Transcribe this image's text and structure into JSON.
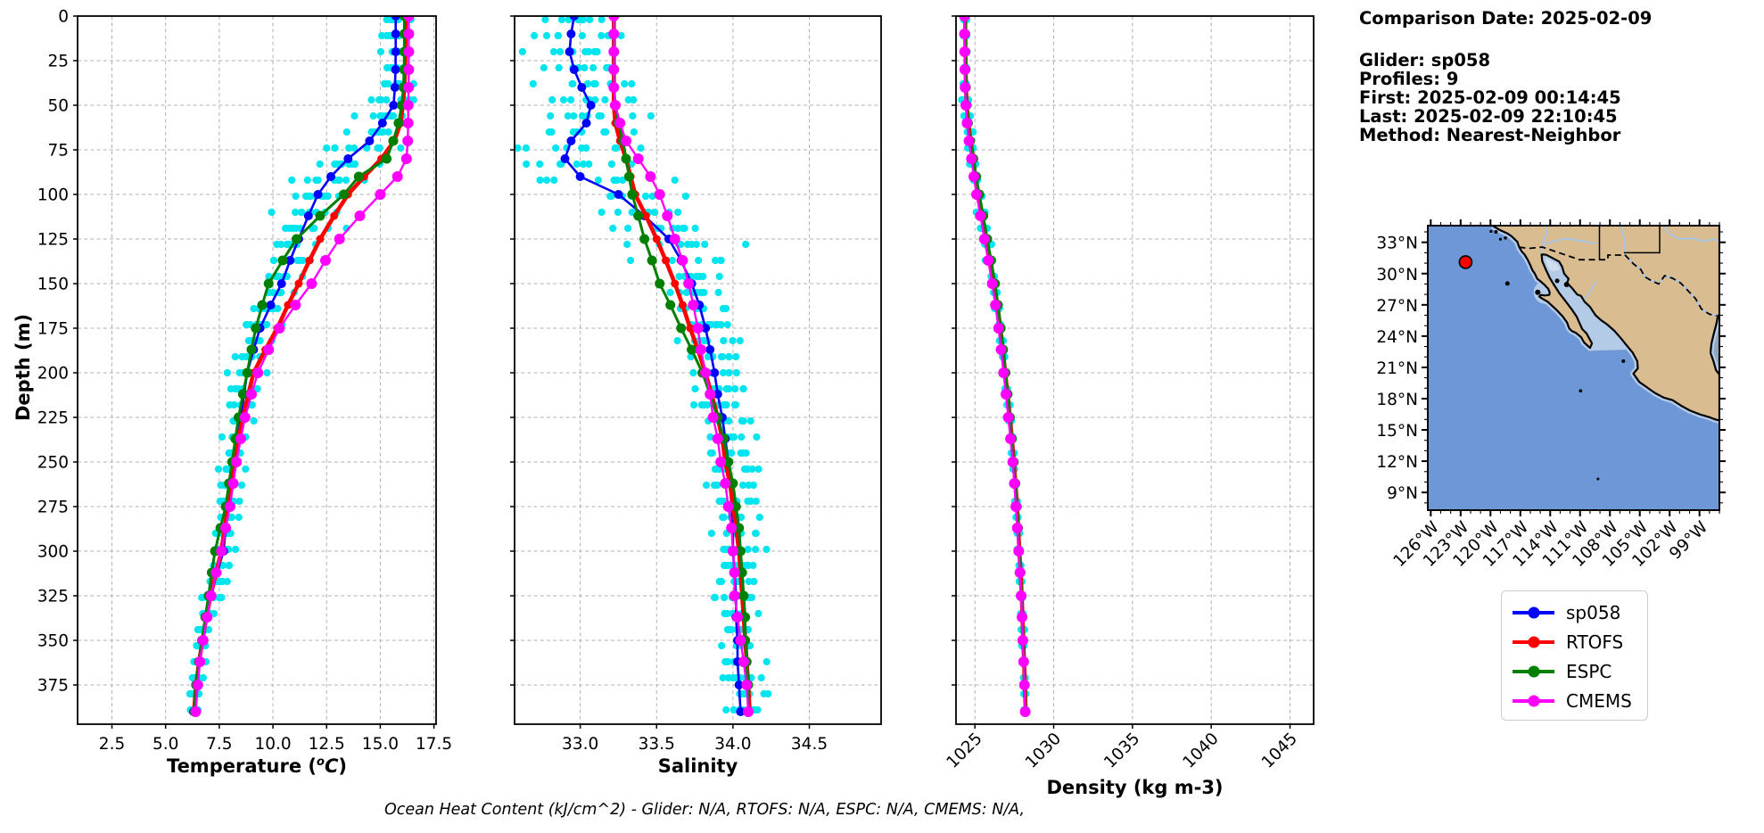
{
  "info_panel": {
    "comparison_date": "Comparison Date: 2025-02-09",
    "glider": "Glider: sp058",
    "profiles": "Profiles: 9",
    "first": "First: 2025-02-09 00:14:45",
    "last": "Last: 2025-02-09 22:10:45",
    "method": "Method: Nearest-Neighbor"
  },
  "footer": {
    "ohc_note": "Ocean Heat Content (kJ/cm^2) - Glider: N/A,  RTOFS: N/A,  ESPC: N/A,  CMEMS: N/A,"
  },
  "legend": {
    "items": [
      {
        "label": "sp058",
        "color": "#0000ff"
      },
      {
        "label": "RTOFS",
        "color": "#ff0000"
      },
      {
        "label": "ESPC",
        "color": "#008000"
      },
      {
        "label": "CMEMS",
        "color": "#ff00ff"
      }
    ]
  },
  "colors": {
    "glider_scatter": "#00e5ee",
    "grid": "#b2b2b2",
    "ocean": "#6d97d6",
    "land": "#d9bc8f",
    "shallow": "#b3cbe6",
    "shallow_light": "#cfdeee",
    "gulf_mexico": "#8fa6bd",
    "river": "#a3c6ee",
    "station_marker": "#ff0000"
  },
  "chart_data": [
    {
      "type": "line",
      "name": "temperature",
      "xlabel_pre": "Temperature (",
      "xlabel_sup": "o",
      "xlabel_unit": "C",
      "xlabel_close": ")",
      "ylabel": "Depth (m)",
      "xlim": [
        0.9,
        17.6
      ],
      "depth_lim": [
        0,
        397
      ],
      "xticks": {
        "values": [
          2.5,
          5.0,
          7.5,
          10.0,
          12.5,
          15.0,
          17.5
        ],
        "labels": [
          "2.5",
          "5.0",
          "7.5",
          "10.0",
          "12.5",
          "15.0",
          "17.5"
        ],
        "rotated": false
      },
      "yticks": {
        "values": [
          0,
          25,
          50,
          75,
          100,
          125,
          150,
          175,
          200,
          225,
          250,
          275,
          300,
          325,
          350,
          375
        ],
        "labels": [
          "0",
          "25",
          "50",
          "75",
          "100",
          "125",
          "150",
          "175",
          "200",
          "225",
          "250",
          "275",
          "300",
          "325",
          "350",
          "375"
        ]
      },
      "depths": [
        0,
        10,
        20,
        30,
        40,
        50,
        60,
        70,
        80,
        90,
        100,
        112,
        125,
        137,
        150,
        162,
        175,
        187,
        200,
        212,
        225,
        237,
        250,
        262,
        275,
        287,
        300,
        312,
        325,
        337,
        350,
        362,
        375,
        390
      ],
      "series": [
        {
          "name": "sp058",
          "values": [
            15.72,
            15.72,
            15.72,
            15.71,
            15.68,
            15.62,
            15.1,
            14.5,
            13.5,
            12.7,
            12.1,
            11.65,
            11.2,
            10.8,
            10.4,
            9.9,
            9.4,
            9.1,
            8.8,
            8.65,
            8.5,
            8.3,
            8.1,
            8.0,
            7.9,
            7.8,
            7.7,
            7.4,
            7.1,
            6.9,
            6.7,
            6.55,
            6.4,
            6.3
          ]
        },
        {
          "name": "RTOFS",
          "values": [
            16.18,
            16.18,
            16.17,
            16.16,
            16.12,
            16.05,
            15.95,
            15.65,
            15.05,
            14.25,
            13.5,
            12.85,
            12.2,
            11.7,
            11.2,
            10.7,
            10.2,
            9.65,
            9.1,
            8.85,
            8.6,
            8.4,
            8.2,
            8.05,
            7.9,
            7.75,
            7.6,
            7.35,
            7.1,
            6.9,
            6.72,
            6.56,
            6.42,
            6.32
          ]
        },
        {
          "name": "ESPC",
          "values": [
            16.12,
            16.12,
            16.12,
            16.11,
            16.08,
            16.0,
            15.85,
            15.6,
            15.3,
            14.0,
            13.3,
            12.2,
            11.1,
            10.45,
            9.8,
            9.5,
            9.2,
            9.0,
            8.8,
            8.6,
            8.4,
            8.25,
            8.1,
            7.95,
            7.8,
            7.55,
            7.3,
            7.15,
            7.0,
            6.85,
            6.7,
            6.55,
            6.42,
            6.35
          ]
        },
        {
          "name": "CMEMS",
          "values": [
            16.33,
            16.33,
            16.33,
            16.33,
            16.32,
            16.3,
            16.3,
            16.28,
            16.22,
            15.8,
            15.0,
            14.05,
            13.1,
            12.45,
            11.8,
            11.05,
            10.3,
            9.8,
            9.3,
            9.0,
            8.7,
            8.5,
            8.3,
            8.15,
            8.0,
            7.8,
            7.6,
            7.35,
            7.12,
            6.93,
            6.75,
            6.6,
            6.5,
            6.4
          ]
        }
      ],
      "scatter": {
        "seed": 7,
        "profiles": 9,
        "depth_start": 2,
        "depth_step": 9,
        "sigma_bands": [
          [
            45,
            0.3
          ],
          [
            140,
            0.55
          ],
          [
            220,
            0.3
          ],
          [
            330,
            0.2
          ],
          [
            400,
            0.12
          ]
        ]
      }
    },
    {
      "type": "line",
      "name": "salinity",
      "xlabel": "Salinity",
      "xlim": [
        32.57,
        34.97
      ],
      "depth_lim": [
        0,
        397
      ],
      "xticks": {
        "values": [
          33.0,
          33.5,
          34.0,
          34.5
        ],
        "labels": [
          "33.0",
          "33.5",
          "34.0",
          "34.5"
        ],
        "rotated": false
      },
      "yticks": {
        "values": [
          0,
          25,
          50,
          75,
          100,
          125,
          150,
          175,
          200,
          225,
          250,
          275,
          300,
          325,
          350,
          375
        ],
        "labels": []
      },
      "depths": [
        0,
        10,
        20,
        30,
        40,
        50,
        60,
        70,
        80,
        90,
        100,
        112,
        125,
        137,
        150,
        162,
        175,
        187,
        200,
        212,
        225,
        237,
        250,
        262,
        275,
        287,
        300,
        312,
        325,
        337,
        350,
        362,
        375,
        390
      ],
      "series": [
        {
          "name": "sp058",
          "values": [
            32.96,
            32.94,
            32.93,
            32.96,
            33.01,
            33.07,
            33.04,
            32.94,
            32.9,
            33.0,
            33.25,
            33.42,
            33.58,
            33.66,
            33.73,
            33.78,
            33.82,
            33.85,
            33.88,
            33.9,
            33.93,
            33.95,
            33.97,
            33.98,
            33.99,
            34.0,
            34.0,
            34.01,
            34.02,
            34.02,
            34.03,
            34.03,
            34.04,
            34.05
          ]
        },
        {
          "name": "RTOFS",
          "values": [
            33.22,
            33.22,
            33.22,
            33.22,
            33.22,
            33.22,
            33.23,
            33.26,
            33.3,
            33.33,
            33.36,
            33.43,
            33.5,
            33.56,
            33.62,
            33.67,
            33.72,
            33.77,
            33.82,
            33.86,
            33.9,
            33.93,
            33.95,
            33.98,
            34.0,
            34.02,
            34.04,
            34.05,
            34.06,
            34.07,
            34.08,
            34.09,
            34.1,
            34.11
          ]
        },
        {
          "name": "ESPC",
          "values": [
            33.22,
            33.22,
            33.22,
            33.22,
            33.22,
            33.23,
            33.25,
            33.28,
            33.3,
            33.32,
            33.34,
            33.38,
            33.42,
            33.47,
            33.52,
            33.59,
            33.66,
            33.73,
            33.8,
            33.85,
            33.9,
            33.94,
            33.97,
            34.0,
            34.02,
            34.04,
            34.05,
            34.06,
            34.07,
            34.08,
            34.08,
            34.09,
            34.1,
            34.1
          ]
        },
        {
          "name": "CMEMS",
          "values": [
            33.22,
            33.22,
            33.22,
            33.22,
            33.22,
            33.23,
            33.26,
            33.3,
            33.38,
            33.46,
            33.52,
            33.57,
            33.62,
            33.67,
            33.71,
            33.74,
            33.77,
            33.79,
            33.82,
            33.85,
            33.87,
            33.9,
            33.92,
            33.95,
            33.97,
            33.99,
            34.0,
            34.01,
            34.01,
            34.03,
            34.05,
            34.07,
            34.09,
            34.1
          ]
        }
      ],
      "scatter": {
        "seed": 11,
        "profiles": 9,
        "depth_start": 2,
        "depth_step": 9,
        "sigma_bands": [
          [
            45,
            0.12
          ],
          [
            140,
            0.17
          ],
          [
            220,
            0.08
          ],
          [
            330,
            0.07
          ],
          [
            400,
            0.05
          ]
        ]
      }
    },
    {
      "type": "line",
      "name": "density",
      "xlabel": "Density (kg m-3)",
      "xlim": [
        1023.8,
        1046.5
      ],
      "depth_lim": [
        0,
        397
      ],
      "xticks": {
        "values": [
          1025,
          1030,
          1035,
          1040,
          1045
        ],
        "labels": [
          "1025",
          "1030",
          "1035",
          "1040",
          "1045"
        ],
        "rotated": true
      },
      "yticks": {
        "values": [
          0,
          25,
          50,
          75,
          100,
          125,
          150,
          175,
          200,
          225,
          250,
          275,
          300,
          325,
          350,
          375
        ],
        "labels": []
      },
      "depths": [
        0,
        10,
        20,
        30,
        40,
        50,
        60,
        70,
        80,
        90,
        100,
        112,
        125,
        137,
        150,
        162,
        175,
        187,
        200,
        212,
        225,
        237,
        250,
        262,
        275,
        287,
        300,
        312,
        325,
        337,
        350,
        362,
        375,
        390
      ],
      "series": [
        {
          "name": "sp058",
          "values": [
            1024.35,
            1024.36,
            1024.37,
            1024.38,
            1024.4,
            1024.45,
            1024.55,
            1024.7,
            1024.85,
            1025.0,
            1025.2,
            1025.45,
            1025.7,
            1025.95,
            1026.2,
            1026.4,
            1026.6,
            1026.75,
            1026.9,
            1027.05,
            1027.2,
            1027.33,
            1027.45,
            1027.55,
            1027.65,
            1027.73,
            1027.8,
            1027.88,
            1027.95,
            1028.0,
            1028.05,
            1028.1,
            1028.15,
            1028.2
          ]
        },
        {
          "name": "RTOFS",
          "values": [
            1024.38,
            1024.39,
            1024.4,
            1024.41,
            1024.43,
            1024.48,
            1024.58,
            1024.72,
            1024.88,
            1025.03,
            1025.22,
            1025.47,
            1025.72,
            1025.97,
            1026.22,
            1026.42,
            1026.62,
            1026.77,
            1026.92,
            1027.07,
            1027.22,
            1027.35,
            1027.47,
            1027.57,
            1027.67,
            1027.75,
            1027.82,
            1027.9,
            1027.97,
            1028.02,
            1028.07,
            1028.12,
            1028.17,
            1028.22
          ]
        },
        {
          "name": "ESPC",
          "values": [
            1024.38,
            1024.39,
            1024.4,
            1024.41,
            1024.43,
            1024.48,
            1024.56,
            1024.7,
            1024.9,
            1025.08,
            1025.28,
            1025.53,
            1025.78,
            1026.03,
            1026.28,
            1026.46,
            1026.64,
            1026.79,
            1026.94,
            1027.08,
            1027.22,
            1027.35,
            1027.47,
            1027.57,
            1027.66,
            1027.74,
            1027.81,
            1027.89,
            1027.96,
            1028.01,
            1028.06,
            1028.11,
            1028.16,
            1028.21
          ]
        },
        {
          "name": "CMEMS",
          "values": [
            1024.33,
            1024.34,
            1024.35,
            1024.36,
            1024.38,
            1024.42,
            1024.5,
            1024.62,
            1024.78,
            1024.93,
            1025.1,
            1025.35,
            1025.6,
            1025.85,
            1026.1,
            1026.3,
            1026.5,
            1026.66,
            1026.82,
            1026.97,
            1027.12,
            1027.26,
            1027.4,
            1027.5,
            1027.6,
            1027.69,
            1027.78,
            1027.86,
            1027.93,
            1027.99,
            1028.04,
            1028.09,
            1028.14,
            1028.19
          ]
        }
      ],
      "scatter": {
        "seed": 13,
        "profiles": 9,
        "depth_start": 2,
        "depth_step": 9,
        "sigma_bands": [
          [
            45,
            0.06
          ],
          [
            140,
            0.1
          ],
          [
            220,
            0.07
          ],
          [
            330,
            0.05
          ],
          [
            400,
            0.04
          ]
        ]
      }
    }
  ],
  "map": {
    "extent": {
      "lon_west": 126.3,
      "lon_east": 97.0,
      "lat_north": 34.6,
      "lat_south": 7.3
    },
    "lat_tick_values": [
      33,
      30,
      27,
      24,
      21,
      18,
      15,
      12,
      9
    ],
    "lat_tick_labels": [
      "33°N",
      "30°N",
      "27°N",
      "24°N",
      "21°N",
      "18°N",
      "15°N",
      "12°N",
      "9°N"
    ],
    "lon_tick_values": [
      126,
      123,
      120,
      117,
      114,
      111,
      108,
      105,
      102,
      99
    ],
    "lon_tick_labels": [
      "126°W",
      "123°W",
      "120°W",
      "117°W",
      "114°W",
      "111°W",
      "108°W",
      "105°W",
      "102°W",
      "99°W"
    ],
    "station_marker": {
      "lat": 31.1,
      "lon": 122.5
    }
  }
}
